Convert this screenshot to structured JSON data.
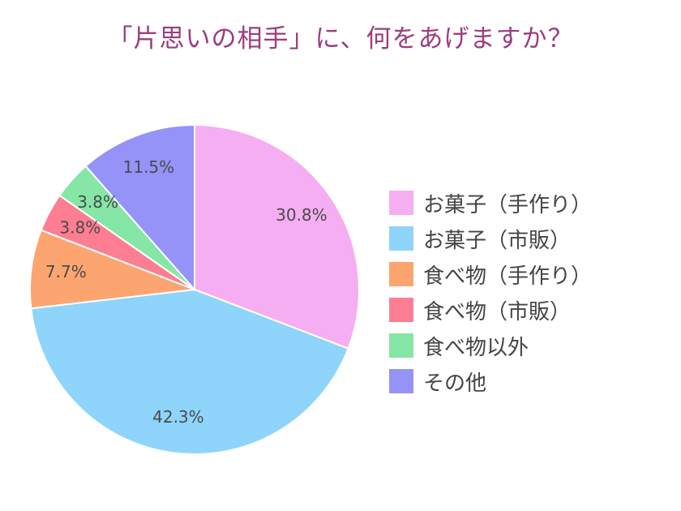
{
  "chart_data": {
    "type": "pie",
    "title": "「片思いの相手」に、何をあげますか？",
    "start_angle_deg": 0,
    "direction": "clockwise",
    "legend_position": "right",
    "slices": [
      {
        "label": "お菓子（手作り）",
        "value": 30.8,
        "display": "30.8%",
        "color": "#f5aef2"
      },
      {
        "label": "お菓子（市販）",
        "value": 42.3,
        "display": "42.3%",
        "color": "#8ed4fb"
      },
      {
        "label": "食べ物（手作り）",
        "value": 7.7,
        "display": "7.7%",
        "color": "#fca570"
      },
      {
        "label": "食べ物（市販）",
        "value": 3.8,
        "display": "3.8%",
        "color": "#fd7e93"
      },
      {
        "label": "食べ物以外",
        "value": 3.8,
        "display": "3.8%",
        "color": "#85e6a5"
      },
      {
        "label": "その他",
        "value": 11.5,
        "display": "11.5%",
        "color": "#9593f8"
      }
    ]
  }
}
